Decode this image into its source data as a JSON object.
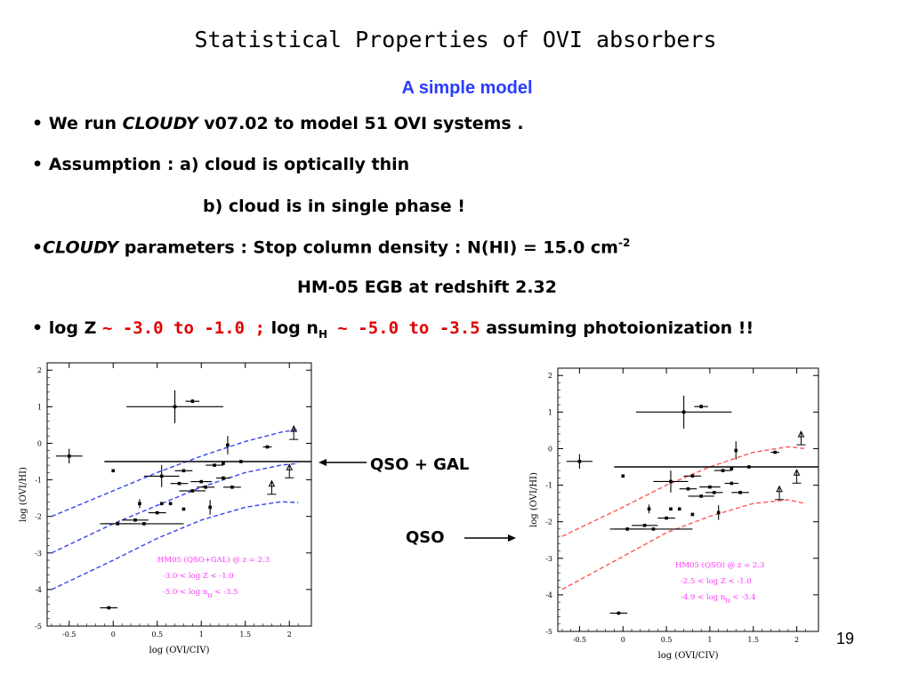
{
  "slide": {
    "title": "Statistical Properties of OVI absorbers",
    "subtitle": "A simple model",
    "subtitle_color": "#2a3cff",
    "highlight_color": "#e00000",
    "page_number": "19",
    "bullets": {
      "b1": {
        "bullet": "•",
        "pre": "We run ",
        "italic": "CLOUDY",
        "post": " v07.02 to model 51 OVI systems ."
      },
      "b2": {
        "bullet": "•",
        "text": "Assumption : a) cloud is optically thin"
      },
      "b2b": {
        "text": "b) cloud is in single phase !"
      },
      "b3": {
        "bullet": "•",
        "italic": "CLOUDY",
        "post": " parameters : Stop column density : N(HI) = 15.0 cm",
        "sup": "-2"
      },
      "b3b": {
        "text": "HM-05 EGB at redshift 2.32"
      },
      "b4": {
        "bullet": "•",
        "t1": "log Z ",
        "r1": "~ -3.0 to -1.0 ;",
        "t2": " log n",
        "sub": "H",
        "r2": " ~ -5.0 to -3.5",
        "t3": " assuming photoionization !!"
      }
    },
    "labels": {
      "qso_gal": "QSO + GAL",
      "qso": "QSO"
    }
  },
  "chart_data": [
    {
      "type": "scatter",
      "panel": "left",
      "xlabel": "log (OVI/CIV)",
      "ylabel": "log (OVI/HI)",
      "xlim": [
        -0.75,
        2.25
      ],
      "ylim": [
        -5,
        2.2
      ],
      "xticks": [
        "-0.5",
        "0",
        "0.5",
        "1",
        "1.5",
        "2"
      ],
      "yticks": [
        "2",
        "1",
        "0",
        "-1",
        "-2",
        "-3",
        "-4",
        "-5"
      ],
      "model_curve_color": "#3344ee",
      "legend_color": "#ff33ff",
      "legend": [
        "HM05 (QSO+GAL) @ z = 2.3",
        "-3.0 < log Z < -1.0",
        "-5.0 < log n",
        "H",
        " < -3.5"
      ],
      "horizontal_line_y": -0.5,
      "model_curves": [
        {
          "x": [
            -0.7,
            0.0,
            0.5,
            1.0,
            1.5,
            1.9,
            2.1
          ],
          "y": [
            -2.0,
            -1.3,
            -0.8,
            -0.35,
            0.05,
            0.3,
            0.38
          ]
        },
        {
          "x": [
            -0.7,
            0.0,
            0.5,
            1.0,
            1.5,
            1.9,
            2.1
          ],
          "y": [
            -3.0,
            -2.2,
            -1.7,
            -1.2,
            -0.8,
            -0.6,
            -0.55
          ]
        },
        {
          "x": [
            -0.7,
            0.0,
            0.5,
            1.0,
            1.5,
            1.9,
            2.1
          ],
          "y": [
            -4.0,
            -3.2,
            -2.6,
            -2.1,
            -1.75,
            -1.6,
            -1.62
          ]
        }
      ],
      "points": [
        {
          "x": 0.7,
          "y": 1.0,
          "xerr": 0.55,
          "yerr": 0.45
        },
        {
          "x": 0.9,
          "y": 1.15,
          "xerr": 0.08,
          "yerr": 0.05
        },
        {
          "x": -0.5,
          "y": -0.35,
          "xerr": 0.15,
          "yerr": 0.2
        },
        {
          "x": 0.0,
          "y": -0.75
        },
        {
          "x": 0.55,
          "y": -0.9,
          "xerr": 0.2,
          "yerr": 0.3
        },
        {
          "x": 0.8,
          "y": -0.75,
          "xerr": 0.1
        },
        {
          "x": 1.15,
          "y": -0.6,
          "xerr": 0.1
        },
        {
          "x": 1.25,
          "y": -0.55
        },
        {
          "x": 1.3,
          "y": -0.05,
          "yerr": 0.25
        },
        {
          "x": 1.45,
          "y": -0.5,
          "xerr": 0.15
        },
        {
          "x": 1.75,
          "y": -0.1,
          "xerr": 0.05
        },
        {
          "x": 0.75,
          "y": -1.1,
          "xerr": 0.1
        },
        {
          "x": 0.9,
          "y": -1.3,
          "xerr": 0.15
        },
        {
          "x": 1.05,
          "y": -1.2,
          "xerr": 0.1
        },
        {
          "x": 1.35,
          "y": -1.2,
          "xerr": 0.1
        },
        {
          "x": 1.0,
          "y": -1.05,
          "xerr": 0.12
        },
        {
          "x": 1.25,
          "y": -0.95,
          "xerr": 0.08
        },
        {
          "x": 0.65,
          "y": -1.65
        },
        {
          "x": 0.55,
          "y": -1.65
        },
        {
          "x": 0.3,
          "y": -1.65,
          "yerr": 0.12
        },
        {
          "x": 0.5,
          "y": -1.9,
          "xerr": 0.1
        },
        {
          "x": 0.25,
          "y": -2.1,
          "xerr": 0.15
        },
        {
          "x": 0.35,
          "y": -2.2,
          "xerr": 0.45
        },
        {
          "x": 0.05,
          "y": -2.2,
          "xerr": 0.2
        },
        {
          "x": 0.8,
          "y": -1.8
        },
        {
          "x": 1.1,
          "y": -1.75,
          "yerr": 0.2
        },
        {
          "x": -0.05,
          "y": -4.5,
          "xerr": 0.1
        }
      ],
      "limits": [
        {
          "x": 2.05,
          "y": 0.3
        },
        {
          "x": 2.0,
          "y": -0.75
        },
        {
          "x": 1.8,
          "y": -1.2
        }
      ]
    },
    {
      "type": "scatter",
      "panel": "right",
      "xlabel": "log (OVI/CIV)",
      "ylabel": "log (OVI/HI)",
      "xlim": [
        -0.75,
        2.25
      ],
      "ylim": [
        -5,
        2.2
      ],
      "xticks": [
        "-0.5",
        "0",
        "0.5",
        "1",
        "1.5",
        "2"
      ],
      "yticks": [
        "2",
        "1",
        "0",
        "-1",
        "-2",
        "-3",
        "-4",
        "-5"
      ],
      "model_curve_color": "#ff5555",
      "legend_color": "#ff33ff",
      "legend": [
        "HM05 (QSO) @ z = 2.3",
        "-2.5 < log Z < -1.0",
        "-4.9 < log n",
        "H",
        " < -3.4"
      ],
      "horizontal_line_y": -0.5,
      "model_curves": [
        {
          "x": [
            -0.7,
            0.0,
            0.5,
            1.0,
            1.5,
            1.9,
            2.1
          ],
          "y": [
            -2.4,
            -1.6,
            -1.0,
            -0.5,
            -0.1,
            0.05,
            0.0
          ]
        },
        {
          "x": [
            -0.7,
            0.0,
            0.5,
            1.0,
            1.5,
            1.9,
            2.1
          ],
          "y": [
            -3.85,
            -2.95,
            -2.3,
            -1.85,
            -1.5,
            -1.4,
            -1.5
          ]
        }
      ],
      "points": [
        {
          "x": 0.7,
          "y": 1.0,
          "xerr": 0.55,
          "yerr": 0.45
        },
        {
          "x": 0.9,
          "y": 1.15,
          "xerr": 0.08,
          "yerr": 0.05
        },
        {
          "x": -0.5,
          "y": -0.35,
          "xerr": 0.15,
          "yerr": 0.2
        },
        {
          "x": 0.0,
          "y": -0.75
        },
        {
          "x": 0.55,
          "y": -0.9,
          "xerr": 0.2,
          "yerr": 0.3
        },
        {
          "x": 0.8,
          "y": -0.75,
          "xerr": 0.1
        },
        {
          "x": 1.15,
          "y": -0.6,
          "xerr": 0.1
        },
        {
          "x": 1.25,
          "y": -0.55
        },
        {
          "x": 1.3,
          "y": -0.05,
          "yerr": 0.25
        },
        {
          "x": 1.45,
          "y": -0.5,
          "xerr": 0.15
        },
        {
          "x": 1.75,
          "y": -0.1,
          "xerr": 0.05
        },
        {
          "x": 0.75,
          "y": -1.1,
          "xerr": 0.1
        },
        {
          "x": 0.9,
          "y": -1.3,
          "xerr": 0.15
        },
        {
          "x": 1.05,
          "y": -1.2,
          "xerr": 0.1
        },
        {
          "x": 1.35,
          "y": -1.2,
          "xerr": 0.1
        },
        {
          "x": 1.0,
          "y": -1.05,
          "xerr": 0.12
        },
        {
          "x": 1.25,
          "y": -0.95,
          "xerr": 0.08
        },
        {
          "x": 0.65,
          "y": -1.65
        },
        {
          "x": 0.55,
          "y": -1.65
        },
        {
          "x": 0.3,
          "y": -1.65,
          "yerr": 0.12
        },
        {
          "x": 0.5,
          "y": -1.9,
          "xerr": 0.1
        },
        {
          "x": 0.25,
          "y": -2.1,
          "xerr": 0.15
        },
        {
          "x": 0.35,
          "y": -2.2,
          "xerr": 0.45
        },
        {
          "x": 0.05,
          "y": -2.2,
          "xerr": 0.2
        },
        {
          "x": 0.8,
          "y": -1.8
        },
        {
          "x": 1.1,
          "y": -1.75,
          "yerr": 0.2
        },
        {
          "x": -0.05,
          "y": -4.5,
          "xerr": 0.1
        }
      ],
      "limits": [
        {
          "x": 2.05,
          "y": 0.3
        },
        {
          "x": 2.0,
          "y": -0.75
        },
        {
          "x": 1.8,
          "y": -1.2
        }
      ]
    }
  ]
}
